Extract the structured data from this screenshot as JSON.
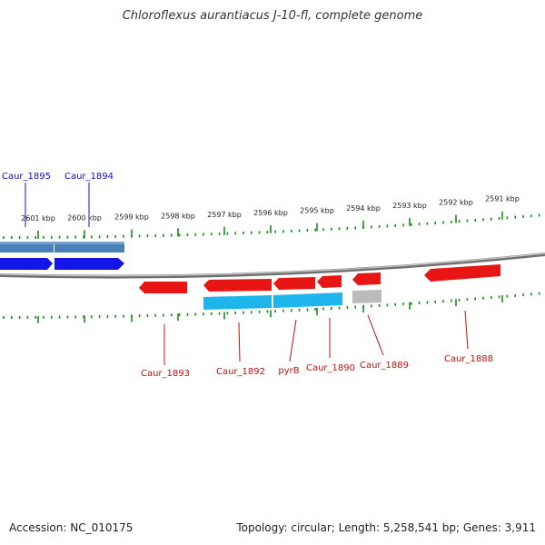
{
  "title": "Chloroflexus aurantiacus J-10-fl, complete genome",
  "footer": {
    "accession": "Accession: NC_010175",
    "topology": "Topology: circular; Length: 5,258,541 bp; Genes: 3,911"
  },
  "colors": {
    "backbone": "#888888",
    "tick": "#1d8a1d",
    "forward_gene": "#1515e8",
    "forward_cds": "#4a7fb5",
    "reverse_gene": "#e81515",
    "reverse_cds": "#1eb4ec",
    "pseudo_cds": "#bbbbbb",
    "forward_label": "#1010c0",
    "reverse_label": "#c01010"
  },
  "diagram_data": {
    "type": "linear genome map (reverse orientation)",
    "ticks": [
      {
        "label": "2601 kbp"
      },
      {
        "label": "2600 kbp"
      },
      {
        "label": "2599 kbp"
      },
      {
        "label": "2598 kbp"
      },
      {
        "label": "2597 kbp"
      },
      {
        "label": "2596 kbp"
      },
      {
        "label": "2595 kbp"
      },
      {
        "label": "2594 kbp"
      },
      {
        "label": "2593 kbp"
      },
      {
        "label": "2592 kbp"
      },
      {
        "label": "2591 kbp"
      }
    ],
    "forward_labels": [
      {
        "name": "Caur_1895"
      },
      {
        "name": "Caur_1894"
      }
    ],
    "reverse_labels": [
      {
        "name": "Caur_1893"
      },
      {
        "name": "Caur_1892"
      },
      {
        "name": "pyrB"
      },
      {
        "name": "Caur_1890"
      },
      {
        "name": "Caur_1889"
      },
      {
        "name": "Caur_1888"
      }
    ]
  }
}
